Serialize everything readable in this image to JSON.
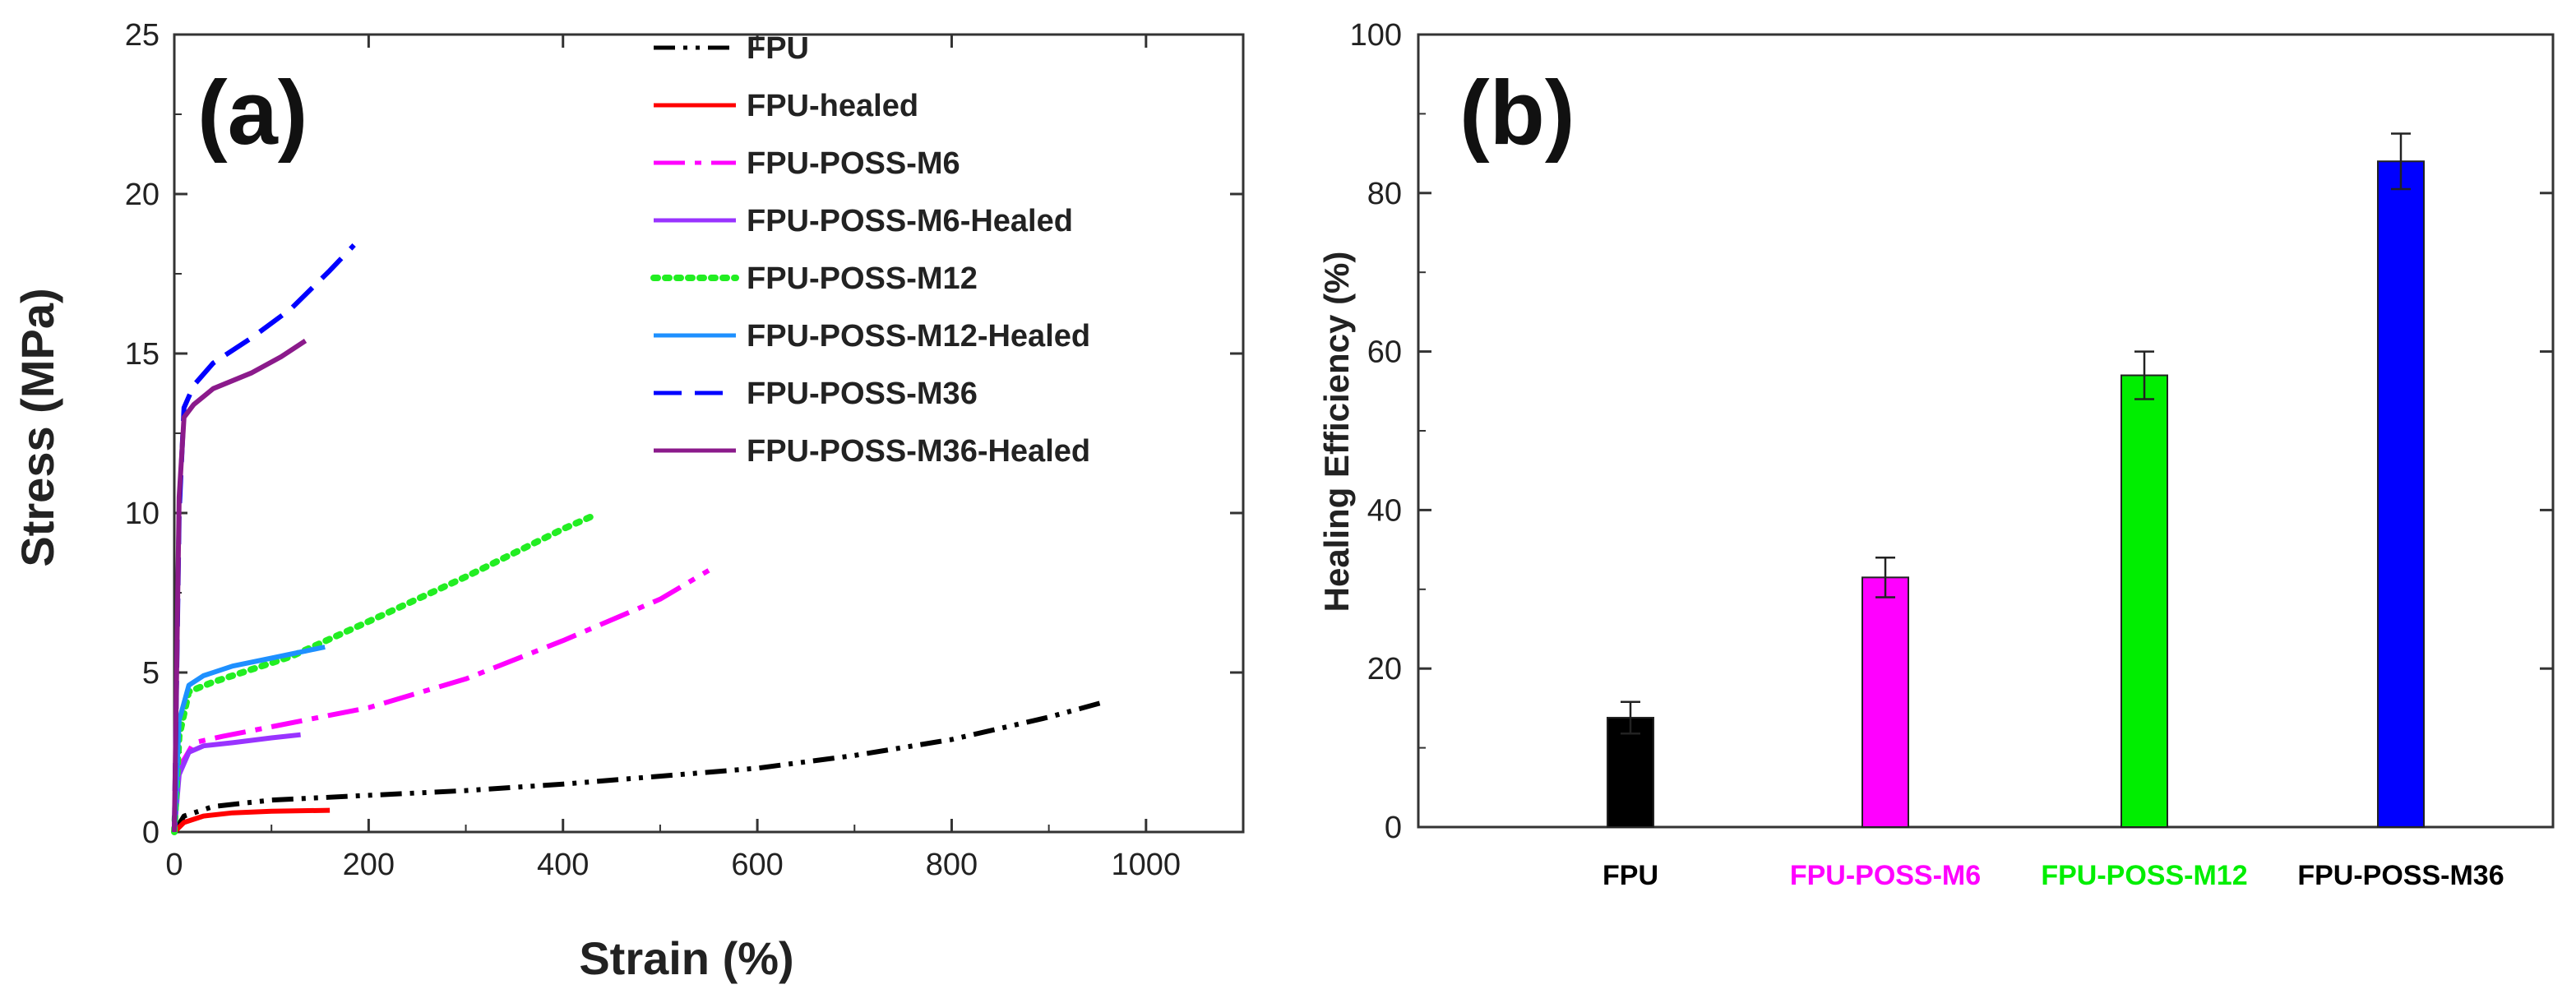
{
  "chart_data": [
    {
      "panel_label": "(a)",
      "type": "line",
      "xlabel": "Strain (%)",
      "ylabel": "Stress (MPa)",
      "xlim": [
        0,
        1100
      ],
      "ylim": [
        0,
        25
      ],
      "xticks": [
        0,
        200,
        400,
        600,
        800,
        1000
      ],
      "yticks": [
        0,
        5,
        10,
        15,
        20,
        25
      ],
      "legend_position": "top-right",
      "series": [
        {
          "name": "FPU",
          "color": "#000000",
          "style": "dashdot-dot",
          "x": [
            0,
            10,
            40,
            100,
            200,
            300,
            400,
            500,
            600,
            700,
            800,
            900,
            960
          ],
          "y": [
            0,
            0.5,
            0.8,
            1.0,
            1.15,
            1.3,
            1.5,
            1.75,
            2.0,
            2.4,
            2.9,
            3.6,
            4.1
          ]
        },
        {
          "name": "FPU-healed",
          "color": "#ff0000",
          "style": "solid",
          "x": [
            0,
            10,
            30,
            60,
            100,
            160
          ],
          "y": [
            0,
            0.3,
            0.5,
            0.6,
            0.65,
            0.68
          ]
        },
        {
          "name": "FPU-POSS-M6",
          "color": "#ff00ff",
          "style": "dashdot",
          "x": [
            0,
            5,
            20,
            50,
            100,
            200,
            300,
            400,
            500,
            550
          ],
          "y": [
            0,
            2.0,
            2.8,
            3.0,
            3.3,
            3.9,
            4.8,
            6.0,
            7.3,
            8.2
          ]
        },
        {
          "name": "FPU-POSS-M6-Healed",
          "color": "#9933ff",
          "style": "solid",
          "x": [
            0,
            5,
            15,
            30,
            60,
            100,
            130
          ],
          "y": [
            0,
            1.8,
            2.5,
            2.7,
            2.8,
            2.95,
            3.05
          ]
        },
        {
          "name": "FPU-POSS-M12",
          "color": "#22ee22",
          "style": "dotted",
          "x": [
            0,
            5,
            15,
            40,
            80,
            120,
            200,
            300,
            400,
            430
          ],
          "y": [
            0,
            3.0,
            4.4,
            4.7,
            5.1,
            5.5,
            6.6,
            8.0,
            9.5,
            9.9
          ]
        },
        {
          "name": "FPU-POSS-M12-Healed",
          "color": "#1e90ff",
          "style": "solid",
          "x": [
            0,
            5,
            15,
            30,
            60,
            100,
            155
          ],
          "y": [
            0,
            3.5,
            4.6,
            4.9,
            5.2,
            5.45,
            5.8
          ]
        },
        {
          "name": "FPU-POSS-M36",
          "color": "#0000ff",
          "style": "dashed",
          "x": [
            0,
            5,
            10,
            20,
            40,
            80,
            120,
            160,
            185
          ],
          "y": [
            0,
            10.0,
            13.3,
            14.0,
            14.7,
            15.5,
            16.4,
            17.6,
            18.4
          ]
        },
        {
          "name": "FPU-POSS-M36-Healed",
          "color": "#8b1a8b",
          "style": "solid",
          "x": [
            0,
            5,
            10,
            20,
            40,
            80,
            110,
            135
          ],
          "y": [
            0,
            10.5,
            13.0,
            13.4,
            13.9,
            14.4,
            14.9,
            15.4
          ]
        }
      ]
    },
    {
      "panel_label": "(b)",
      "type": "bar",
      "xlabel": "",
      "ylabel": "Healing Efficiency (%)",
      "ylim": [
        0,
        100
      ],
      "yticks": [
        0,
        20,
        40,
        60,
        80,
        100
      ],
      "categories": [
        "FPU",
        "FPU-POSS-M6",
        "FPU-POSS-M12",
        "FPU-POSS-M36"
      ],
      "values": [
        13.8,
        31.5,
        57.0,
        84.0
      ],
      "errors": [
        2.0,
        2.5,
        3.0,
        3.5
      ],
      "bar_colors": [
        "#000000",
        "#ff00ff",
        "#00ee00",
        "#0000ff"
      ],
      "label_colors": [
        "#000000",
        "#ff00ff",
        "#00ee00",
        "#000000"
      ]
    }
  ]
}
